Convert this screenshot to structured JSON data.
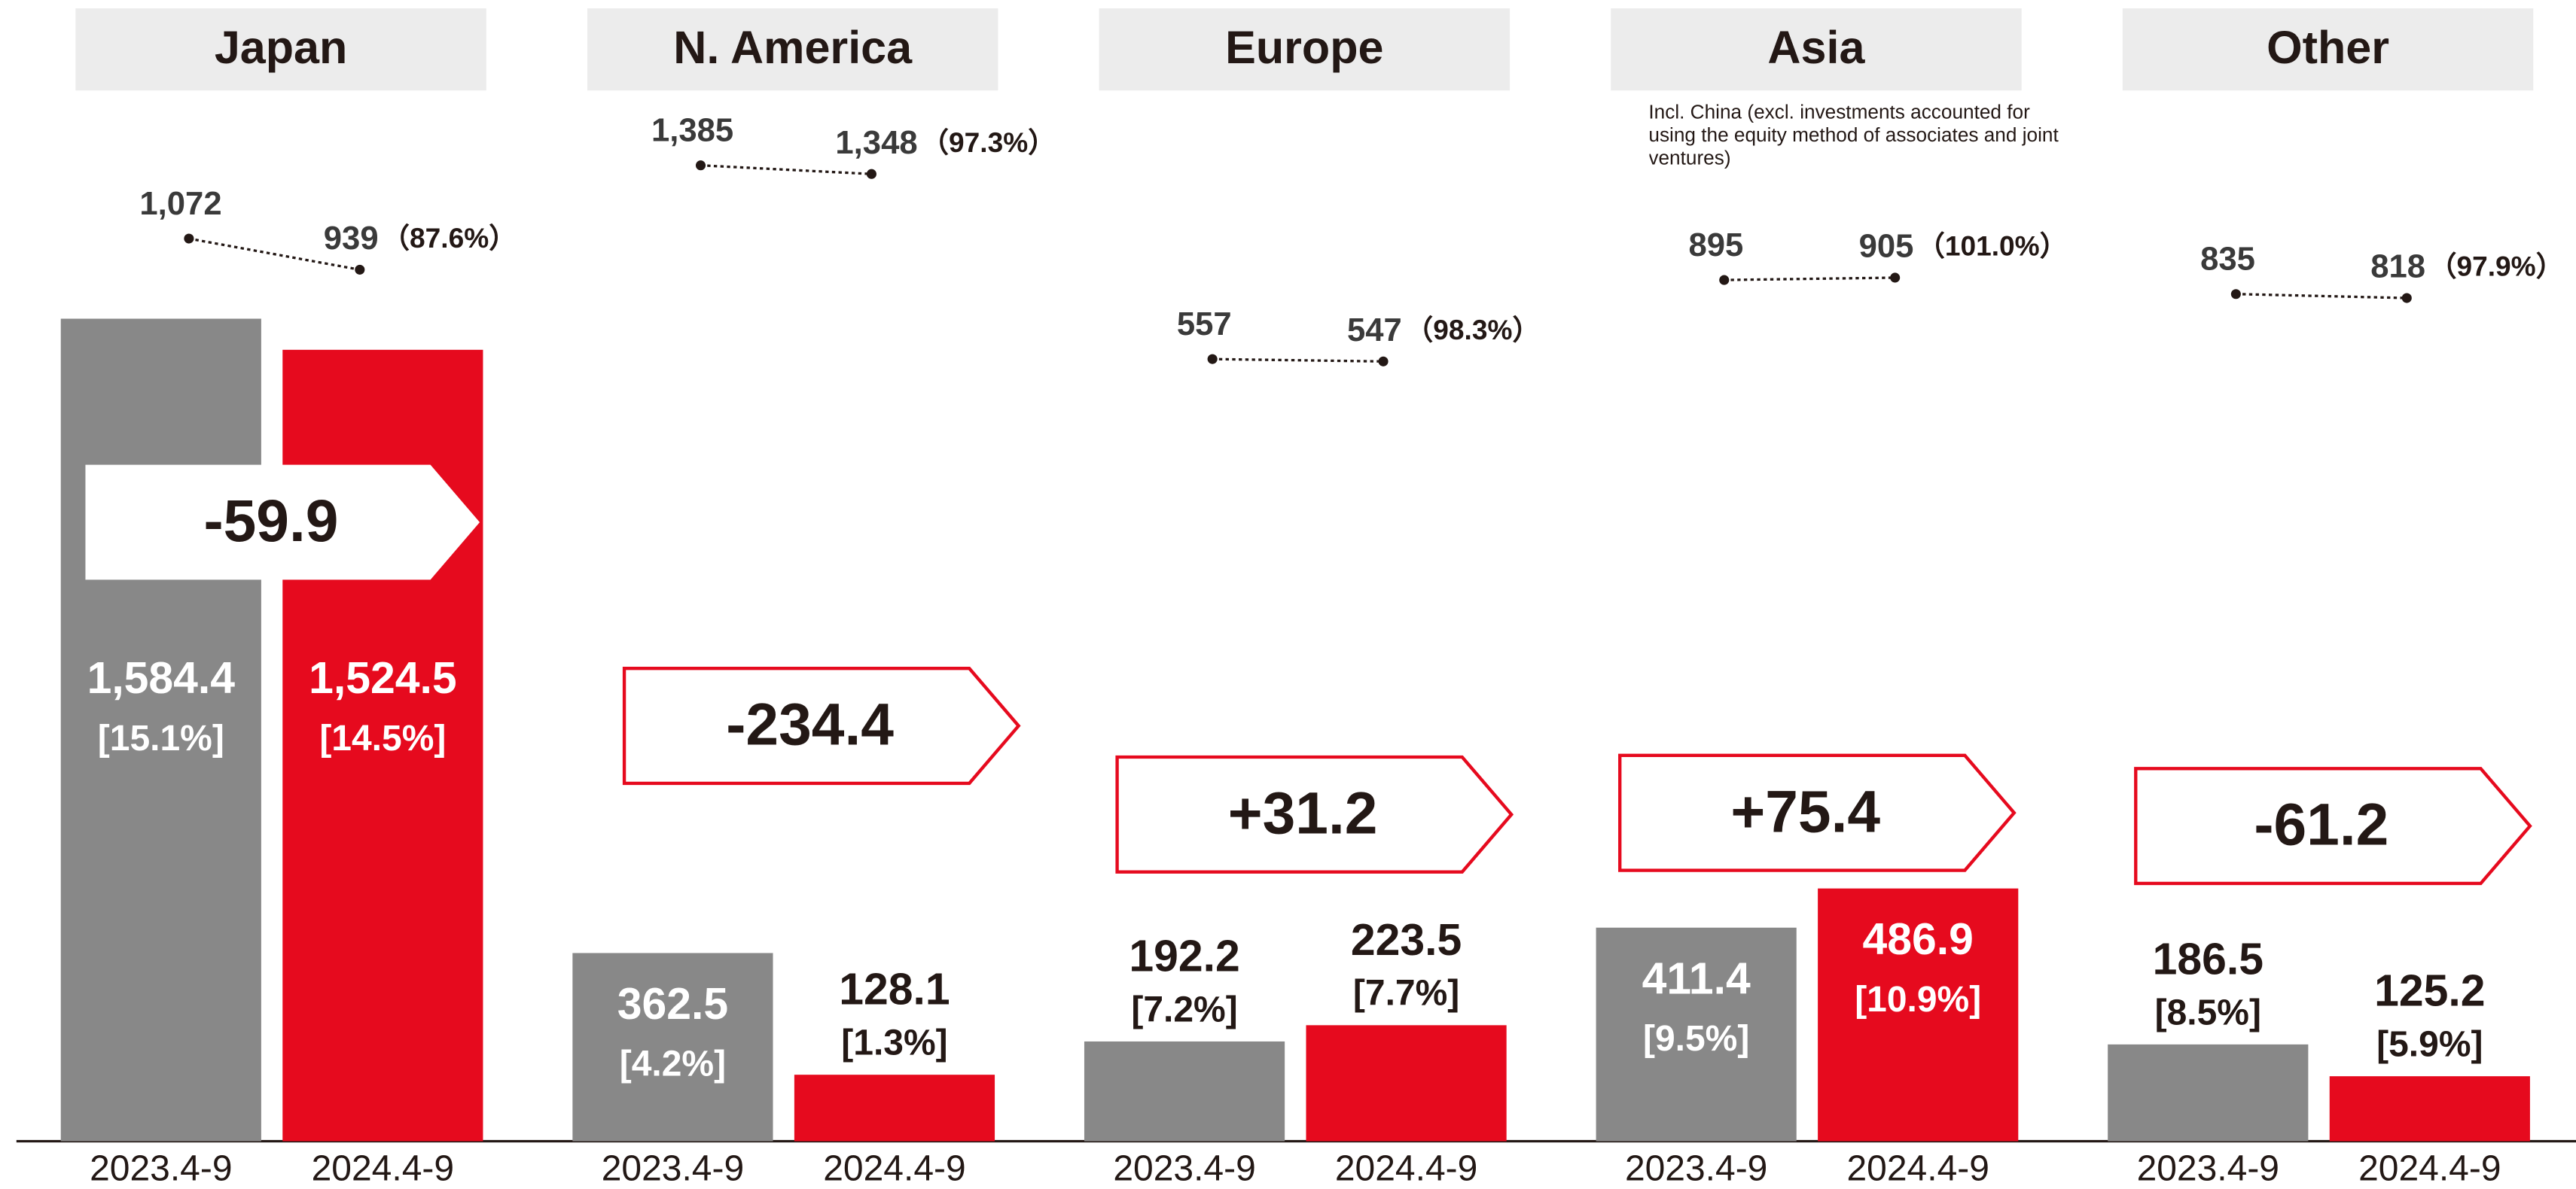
{
  "chart_data": {
    "type": "bar",
    "categories": [
      "Japan",
      "N. America",
      "Europe",
      "Asia",
      "Other"
    ],
    "ylim": [
      0,
      2198
    ],
    "series": [
      {
        "name": "2023.4-9",
        "color": "#888888",
        "values": [
          1584.4,
          362.5,
          192.2,
          411.4,
          186.5
        ],
        "value_labels": [
          "1,584.4",
          "362.5",
          "192.2",
          "411.4",
          "186.5"
        ],
        "share_labels": [
          "[15.1%]",
          "[4.2%]",
          "[7.2%]",
          "[9.5%]",
          "[8.5%]"
        ]
      },
      {
        "name": "2024.4-9",
        "color": "#e60a1e",
        "values": [
          1524.5,
          128.1,
          223.5,
          486.9,
          125.2
        ],
        "value_labels": [
          "1,524.5",
          "128.1",
          "223.5",
          "486.9",
          "125.2"
        ],
        "share_labels": [
          "[14.5%]",
          "[1.3%]",
          "[7.7%]",
          "[10.9%]",
          "[5.9%]"
        ]
      }
    ],
    "changes": [
      -59.9,
      -234.4,
      31.2,
      75.4,
      -61.2
    ],
    "change_labels": [
      "-59.9",
      "-234.4",
      "+31.2",
      "+75.4",
      "-61.2"
    ],
    "y2lim": [
      0,
      2091
    ],
    "units": [
      {
        "values": [
          1072,
          939
        ],
        "value_labels": [
          "1,072",
          "939"
        ],
        "ratio_label": "（87.6%）"
      },
      {
        "values": [
          1385,
          1348
        ],
        "value_labels": [
          "1,385",
          "1,348"
        ],
        "ratio_label": "（97.3%）"
      },
      {
        "values": [
          557,
          547
        ],
        "value_labels": [
          "557",
          "547"
        ],
        "ratio_label": "（98.3%）"
      },
      {
        "values": [
          895,
          905
        ],
        "value_labels": [
          "895",
          "905"
        ],
        "ratio_label": "（101.0%）"
      },
      {
        "values": [
          835,
          818
        ],
        "value_labels": [
          "835",
          "818"
        ],
        "ratio_label": "（97.9%）"
      }
    ],
    "note": {
      "category": 3,
      "text": "Incl. China (excl. investments accounted for using the equity method of associates and joint ventures)"
    }
  }
}
